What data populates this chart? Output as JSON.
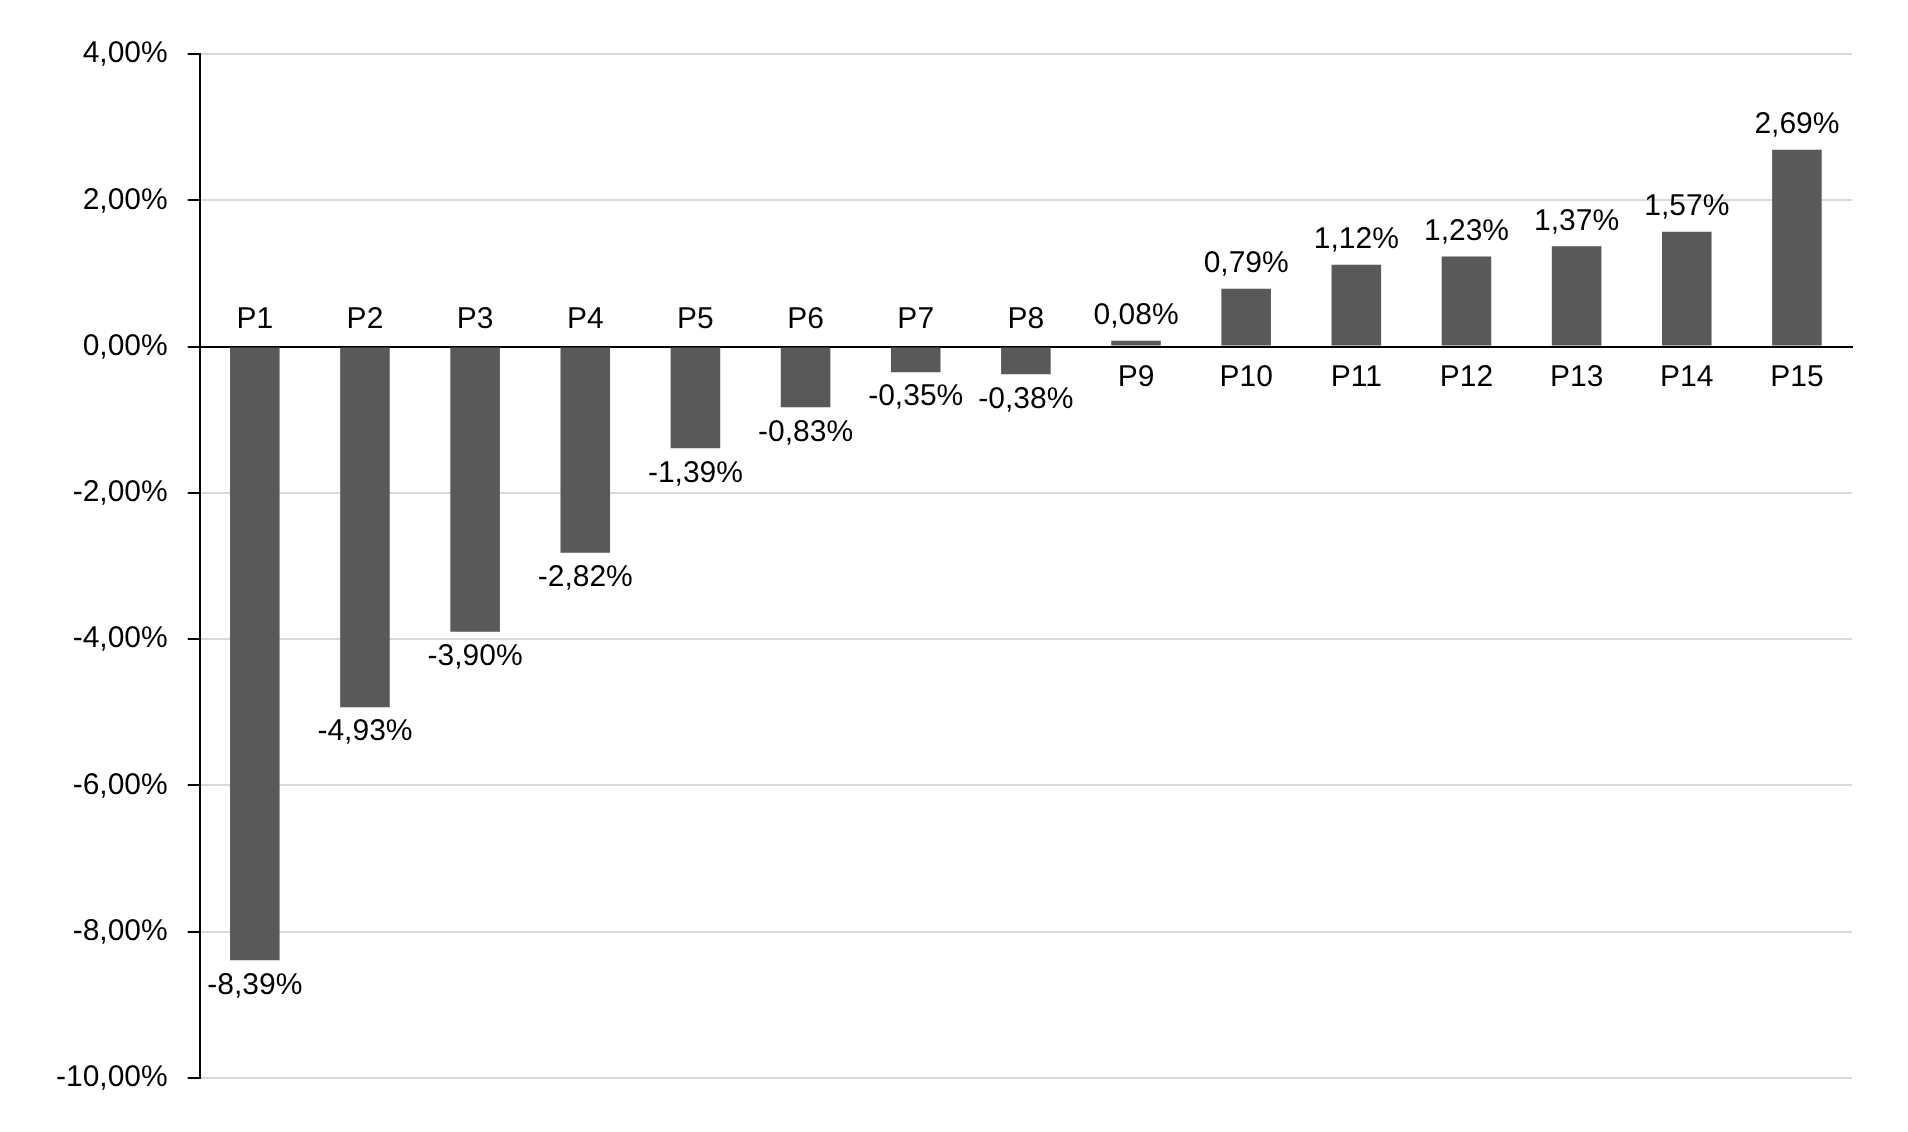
{
  "chart_data": {
    "type": "bar",
    "categories": [
      "P1",
      "P2",
      "P3",
      "P4",
      "P5",
      "P6",
      "P7",
      "P8",
      "P9",
      "P10",
      "P11",
      "P12",
      "P13",
      "P14",
      "P15"
    ],
    "values": [
      -8.39,
      -4.93,
      -3.9,
      -2.82,
      -1.39,
      -0.83,
      -0.35,
      -0.38,
      0.08,
      0.79,
      1.12,
      1.23,
      1.37,
      1.57,
      2.69
    ],
    "value_labels": [
      "-8,39%",
      "-4,93%",
      "-3,90%",
      "-2,82%",
      "-1,39%",
      "-0,83%",
      "-0,35%",
      "-0,38%",
      "0,08%",
      "0,79%",
      "1,12%",
      "1,23%",
      "1,37%",
      "1,57%",
      "2,69%"
    ],
    "color": "#595959",
    "ylim": [
      -10,
      4
    ],
    "yticks": [
      {
        "value": -10,
        "label": "-10,00%"
      },
      {
        "value": -8,
        "label": "-8,00%"
      },
      {
        "value": -6,
        "label": "-6,00%"
      },
      {
        "value": -4,
        "label": "-4,00%"
      },
      {
        "value": -2,
        "label": "-2,00%"
      },
      {
        "value": 0,
        "label": "0,00%"
      },
      {
        "value": 2,
        "label": "2,00%"
      },
      {
        "value": 4,
        "label": "4,00%"
      }
    ],
    "grid": "y",
    "legend": false
  }
}
